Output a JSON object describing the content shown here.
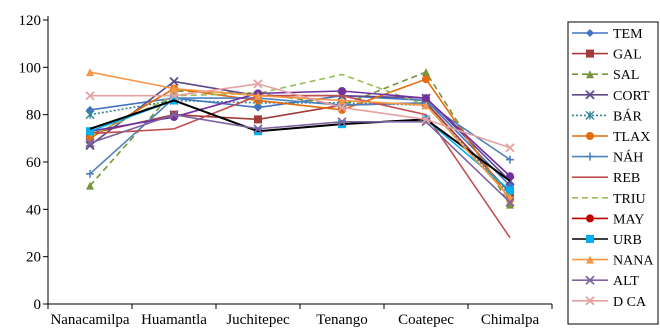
{
  "chart_data": {
    "type": "line",
    "title": "",
    "xlabel": "",
    "ylabel": "",
    "ylim": [
      0,
      120
    ],
    "yticks": [
      0,
      20,
      40,
      60,
      80,
      100,
      120
    ],
    "grid": false,
    "legend_position": "right",
    "categories": [
      "Nanacamilpa",
      "Huamantla",
      "Juchitepec",
      "Tenango",
      "Coatepec",
      "Chimalpa"
    ],
    "series": [
      {
        "name": "TEM",
        "color": "#4472C4",
        "marker": "diamond",
        "dash": "solid",
        "values": [
          82,
          87,
          83,
          88,
          86,
          50
        ]
      },
      {
        "name": "GAL",
        "color": "#A33B3B",
        "marker": "square",
        "dash": "solid",
        "values": [
          72,
          80,
          78,
          84,
          85,
          47
        ]
      },
      {
        "name": "SAL",
        "color": "#77933C",
        "marker": "triangle",
        "dash": "dashed",
        "values": [
          50,
          90,
          89,
          84,
          98,
          42
        ]
      },
      {
        "name": "CORT",
        "color": "#5F4B8B",
        "marker": "x",
        "dash": "solid",
        "values": [
          67,
          94,
          88,
          88,
          87,
          52
        ]
      },
      {
        "name": "BÁR",
        "color": "#31859C",
        "marker": "star",
        "dash": "dotted",
        "values": [
          80,
          86,
          85,
          85,
          84,
          46
        ]
      },
      {
        "name": "TLAX",
        "color": "#E46C0A",
        "marker": "circle",
        "dash": "solid",
        "values": [
          70,
          91,
          86,
          82,
          95,
          44
        ]
      },
      {
        "name": "NÁH",
        "color": "#4F81BD",
        "marker": "plus",
        "dash": "solid",
        "values": [
          55,
          87,
          87,
          84,
          85,
          61
        ]
      },
      {
        "name": "REB",
        "color": "#C0504D",
        "marker": "none",
        "dash": "solid",
        "values": [
          72,
          74,
          88,
          88,
          80,
          28
        ]
      },
      {
        "name": "TRIU",
        "color": "#9BBB59",
        "marker": "none",
        "dash": "dashed",
        "values": [
          71,
          88,
          89,
          97,
          84,
          45
        ]
      },
      {
        "name": "MAY",
        "color": "#7030A0",
        "marker": "circle",
        "dash": "solid",
        "values": [
          73,
          79,
          89,
          90,
          87,
          54
        ]
      },
      {
        "name": "URB",
        "color": "#00B0F0",
        "marker": "square",
        "dash": "solid",
        "values": [
          73,
          86,
          73,
          76,
          78,
          48
        ]
      },
      {
        "name": "URB_line",
        "color": "#000000",
        "marker": "none",
        "dash": "solid",
        "values": [
          74,
          86,
          73,
          76,
          78,
          52
        ],
        "hidden_legend": true
      },
      {
        "name": "NANA",
        "color": "#F79646",
        "marker": "triangle",
        "dash": "solid",
        "values": [
          98,
          91,
          88,
          86,
          84,
          45
        ]
      },
      {
        "name": "ALT",
        "color": "#8064A2",
        "marker": "x",
        "dash": "solid",
        "values": [
          68,
          80,
          74,
          77,
          77,
          43
        ]
      },
      {
        "name": "D CA",
        "color": "#E6A0A0",
        "marker": "x",
        "dash": "solid",
        "values": [
          88,
          88,
          93,
          83,
          78,
          66
        ]
      }
    ],
    "legend": [
      {
        "label": "TEM",
        "color": "#4472C4",
        "marker": "diamond",
        "dash": "solid"
      },
      {
        "label": "GAL",
        "color": "#A33B3B",
        "marker": "square",
        "dash": "solid"
      },
      {
        "label": "SAL",
        "color": "#77933C",
        "marker": "triangle",
        "dash": "dashed"
      },
      {
        "label": "CORT",
        "color": "#5F4B8B",
        "marker": "x",
        "dash": "solid"
      },
      {
        "label": "BÁR",
        "color": "#31859C",
        "marker": "star",
        "dash": "dotted"
      },
      {
        "label": "TLAX",
        "color": "#E46C0A",
        "marker": "circle",
        "dash": "solid"
      },
      {
        "label": "NÁH",
        "color": "#4F81BD",
        "marker": "plus",
        "dash": "solid"
      },
      {
        "label": "REB",
        "color": "#C0504D",
        "marker": "none",
        "dash": "solid"
      },
      {
        "label": "TRIU",
        "color": "#9BBB59",
        "marker": "none",
        "dash": "dashed"
      },
      {
        "label": "MAY",
        "color": "#C00000",
        "marker": "circle",
        "dash": "solid"
      },
      {
        "label": "URB",
        "color": "#000000",
        "marker": "square-cyan",
        "dash": "solid"
      },
      {
        "label": "NANA",
        "color": "#F79646",
        "marker": "triangle",
        "dash": "solid"
      },
      {
        "label": "ALT",
        "color": "#8064A2",
        "marker": "x",
        "dash": "solid"
      },
      {
        "label": "D CA",
        "color": "#E6A0A0",
        "marker": "x",
        "dash": "solid"
      }
    ]
  }
}
